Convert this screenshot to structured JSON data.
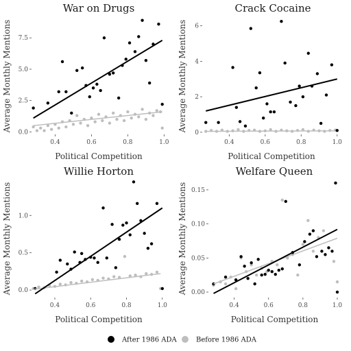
{
  "legend": {
    "after_label": "After 1986 ADA",
    "before_label": "Before 1986 ADA"
  },
  "colors": {
    "after": "#000000",
    "before": "#bebebe"
  },
  "chart_data": [
    {
      "type": "scatter",
      "title": "War on Drugs",
      "xlabel": "Political Competition",
      "ylabel": "Average Monthly Mentions",
      "xlim": [
        0.27,
        1.01
      ],
      "ylim": [
        -0.2,
        9.1
      ],
      "xticks": [
        0.4,
        0.6,
        0.8,
        1.0
      ],
      "xtick_labels": [
        "0.4",
        "0.6",
        "0.8",
        "1.0"
      ],
      "yticks": [
        0,
        2.5,
        5.0,
        7.5
      ],
      "ytick_labels": [
        "0.0",
        "2.5",
        "5.0",
        "7.5"
      ],
      "grid": false,
      "series": [
        {
          "name": "After 1986 ADA",
          "x": [
            0.28,
            0.36,
            0.42,
            0.44,
            0.46,
            0.49,
            0.52,
            0.55,
            0.57,
            0.59,
            0.61,
            0.63,
            0.65,
            0.67,
            0.7,
            0.72,
            0.75,
            0.77,
            0.79,
            0.81,
            0.84,
            0.86,
            0.88,
            0.9,
            0.92,
            0.94,
            0.97,
            0.99
          ],
          "y": [
            1.9,
            2.3,
            3.2,
            5.6,
            3.2,
            1.5,
            4.9,
            5.1,
            3.7,
            2.8,
            3.5,
            3.8,
            3.3,
            7.5,
            4.6,
            4.7,
            2.7,
            5.3,
            5.8,
            7.1,
            6.4,
            7.6,
            8.9,
            5.7,
            3.9,
            7.0,
            8.6,
            2.2
          ],
          "fit": [
            1.1,
            7.3
          ]
        },
        {
          "name": "Before 1986 ADA",
          "x": [
            0.28,
            0.3,
            0.32,
            0.34,
            0.36,
            0.38,
            0.4,
            0.42,
            0.44,
            0.46,
            0.48,
            0.5,
            0.52,
            0.54,
            0.56,
            0.58,
            0.6,
            0.62,
            0.64,
            0.66,
            0.68,
            0.7,
            0.72,
            0.74,
            0.76,
            0.78,
            0.8,
            0.82,
            0.84,
            0.86,
            0.88,
            0.9,
            0.92,
            0.94,
            0.96,
            0.98,
            0.99
          ],
          "y": [
            0.4,
            0.1,
            0.3,
            0.1,
            0.5,
            0.2,
            0.6,
            0.3,
            0.8,
            0.4,
            0.9,
            0.6,
            1.3,
            0.7,
            1.0,
            0.5,
            1.1,
            0.8,
            1.4,
            0.9,
            1.2,
            0.7,
            1.5,
            1.0,
            1.3,
            0.9,
            1.6,
            1.1,
            1.4,
            1.2,
            1.8,
            1.0,
            1.5,
            1.3,
            1.7,
            1.6,
            0.3
          ],
          "fit": [
            0.5,
            1.6
          ]
        }
      ]
    },
    {
      "type": "scatter",
      "title": "Crack Cocaine",
      "xlabel": "Political Competition",
      "ylabel": "Average Monthly Mentions",
      "xlim": [
        0.25,
        1.02
      ],
      "ylim": [
        -0.12,
        6.45
      ],
      "xticks": [
        0.4,
        0.6,
        0.8,
        1.0
      ],
      "xtick_labels": [
        "0.4",
        "0.6",
        "0.8",
        "1.0"
      ],
      "yticks": [
        0,
        2,
        4,
        6
      ],
      "ytick_labels": [
        "0",
        "2",
        "4",
        "6"
      ],
      "grid": false,
      "series": [
        {
          "name": "After 1986 ADA",
          "x": [
            0.27,
            0.34,
            0.42,
            0.44,
            0.46,
            0.49,
            0.52,
            0.55,
            0.57,
            0.59,
            0.61,
            0.63,
            0.65,
            0.69,
            0.71,
            0.74,
            0.77,
            0.79,
            0.81,
            0.84,
            0.86,
            0.89,
            0.91,
            0.94,
            0.97,
            1.0
          ],
          "y": [
            0.55,
            0.55,
            3.65,
            1.4,
            0.6,
            0.35,
            5.85,
            2.5,
            3.35,
            0.8,
            1.6,
            1.15,
            1.15,
            6.25,
            3.9,
            1.7,
            1.5,
            2.6,
            2.0,
            4.45,
            2.6,
            3.3,
            0.5,
            2.1,
            3.8,
            0.1
          ],
          "fit": [
            1.2,
            3.0
          ]
        },
        {
          "name": "Before 1986 ADA",
          "x": [
            0.27,
            0.3,
            0.33,
            0.36,
            0.39,
            0.42,
            0.45,
            0.48,
            0.51,
            0.54,
            0.57,
            0.6,
            0.63,
            0.66,
            0.69,
            0.72,
            0.75,
            0.78,
            0.81,
            0.84,
            0.87,
            0.9,
            0.93,
            0.96,
            0.99
          ],
          "y": [
            0.05,
            0.1,
            0.05,
            0.12,
            0.05,
            0.08,
            0.15,
            0.05,
            0.1,
            0.12,
            0.05,
            0.08,
            0.15,
            0.05,
            0.12,
            0.08,
            0.05,
            0.1,
            0.15,
            0.05,
            0.12,
            0.08,
            0.05,
            0.1,
            0.12
          ],
          "fit": [
            0.05,
            0.08
          ]
        }
      ]
    },
    {
      "type": "scatter",
      "title": "Willie Horton",
      "xlabel": "Political Competition",
      "ylabel": "Average Monthly Mentions",
      "xlim": [
        0.27,
        1.02
      ],
      "ylim": [
        -0.1,
        1.48
      ],
      "xticks": [
        0.4,
        0.6,
        0.8,
        1.0
      ],
      "xtick_labels": [
        "0.4",
        "0.6",
        "0.8",
        "1.0"
      ],
      "yticks": [
        0,
        0.5,
        1.0
      ],
      "ytick_labels": [
        "0.0",
        "0.5",
        "1.0"
      ],
      "grid": false,
      "series": [
        {
          "name": "After 1986 ADA",
          "x": [
            0.29,
            0.41,
            0.43,
            0.47,
            0.49,
            0.51,
            0.54,
            0.55,
            0.57,
            0.6,
            0.62,
            0.64,
            0.67,
            0.69,
            0.72,
            0.74,
            0.76,
            0.78,
            0.8,
            0.82,
            0.84,
            0.86,
            0.88,
            0.9,
            0.92,
            0.94,
            0.97,
            1.0
          ],
          "y": [
            0.02,
            0.24,
            0.4,
            0.35,
            0.28,
            0.51,
            0.37,
            0.49,
            0.41,
            0.44,
            0.43,
            0.37,
            1.1,
            0.43,
            0.88,
            0.3,
            0.68,
            0.87,
            0.9,
            0.74,
            1.45,
            1.16,
            0.93,
            0.76,
            0.56,
            0.62,
            1.16,
            0.02
          ],
          "fit": [
            -0.05,
            1.1
          ]
        },
        {
          "name": "Before 1986 ADA",
          "x": [
            0.28,
            0.31,
            0.34,
            0.37,
            0.4,
            0.43,
            0.46,
            0.49,
            0.52,
            0.55,
            0.58,
            0.61,
            0.64,
            0.67,
            0.7,
            0.73,
            0.76,
            0.79,
            0.82,
            0.85,
            0.88,
            0.91,
            0.94,
            0.97,
            0.99
          ],
          "y": [
            0.02,
            0.04,
            0.03,
            0.06,
            0.05,
            0.08,
            0.07,
            0.1,
            0.09,
            0.12,
            0.11,
            0.14,
            0.13,
            0.16,
            0.15,
            0.18,
            0.17,
            0.45,
            0.19,
            0.2,
            0.18,
            0.22,
            0.21,
            0.24,
            0.02
          ],
          "fit": [
            0.01,
            0.22
          ]
        }
      ]
    },
    {
      "type": "scatter",
      "title": "Welfare Queen",
      "xlabel": "Political Competition",
      "ylabel": "Average Monthly Mentions",
      "xlim": [
        0.25,
        1.02
      ],
      "ylim": [
        -0.008,
        0.165
      ],
      "xticks": [
        0.4,
        0.6,
        0.8,
        1.0
      ],
      "xtick_labels": [
        "0.4",
        "0.6",
        "0.8",
        "1.0"
      ],
      "yticks": [
        0,
        0.05,
        0.1,
        0.15
      ],
      "ytick_labels": [
        "0.00",
        "0.05",
        "0.10",
        "0.15"
      ],
      "grid": false,
      "series": [
        {
          "name": "After 1986 ADA",
          "x": [
            0.28,
            0.35,
            0.41,
            0.44,
            0.46,
            0.48,
            0.5,
            0.52,
            0.54,
            0.56,
            0.58,
            0.6,
            0.62,
            0.64,
            0.66,
            0.68,
            0.7,
            0.74,
            0.78,
            0.81,
            0.84,
            0.86,
            0.88,
            0.91,
            0.93,
            0.95,
            0.97,
            0.99,
            1.0
          ],
          "y": [
            0.012,
            0.022,
            0.018,
            0.052,
            0.038,
            0.02,
            0.043,
            0.012,
            0.048,
            0.025,
            0.026,
            0.032,
            0.03,
            0.026,
            0.032,
            0.034,
            0.133,
            0.058,
            0.04,
            0.074,
            0.085,
            0.09,
            0.052,
            0.06,
            0.055,
            0.065,
            0.06,
            0.16,
            0.0
          ],
          "fit": [
            -0.002,
            0.092
          ]
        },
        {
          "name": "Before 1986 ADA",
          "x": [
            0.28,
            0.32,
            0.35,
            0.38,
            0.41,
            0.44,
            0.47,
            0.5,
            0.53,
            0.56,
            0.59,
            0.62,
            0.65,
            0.68,
            0.71,
            0.74,
            0.77,
            0.8,
            0.83,
            0.86,
            0.89,
            0.92,
            0.95,
            0.98,
            1.0
          ],
          "y": [
            0.01,
            0.015,
            0.012,
            0.022,
            0.005,
            0.05,
            0.03,
            0.04,
            0.025,
            0.035,
            0.03,
            0.045,
            0.04,
            0.135,
            0.05,
            0.055,
            0.025,
            0.07,
            0.105,
            0.06,
            0.08,
            0.09,
            0.065,
            0.045,
            0.015
          ],
          "fit": [
            0.012,
            0.079
          ]
        }
      ]
    }
  ]
}
